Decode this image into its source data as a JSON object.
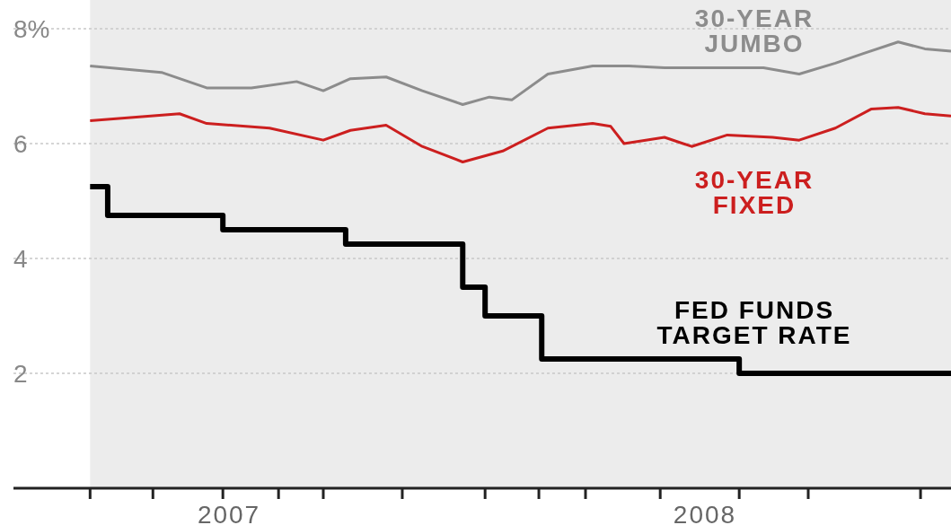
{
  "chart_data": {
    "type": "line",
    "xlim": [
      2006.547,
      2008.517
    ],
    "ylim": [
      0,
      8.5
    ],
    "xticks": [
      {
        "value": 2006.708,
        "label": null
      },
      {
        "value": 2006.84,
        "label": null
      },
      {
        "value": 2006.987,
        "label": null
      },
      {
        "value": 2007,
        "label": "2007"
      },
      {
        "value": 2007.104,
        "label": null
      },
      {
        "value": 2007.198,
        "label": null
      },
      {
        "value": 2007.364,
        "label": null
      },
      {
        "value": 2007.538,
        "label": null
      },
      {
        "value": 2007.651,
        "label": null
      },
      {
        "value": 2007.749,
        "label": null
      },
      {
        "value": 2007.906,
        "label": null
      },
      {
        "value": 2008,
        "label": "2008"
      },
      {
        "value": 2008.072,
        "label": null
      },
      {
        "value": 2008.217,
        "label": null
      },
      {
        "value": 2008.453,
        "label": null
      }
    ],
    "yticks": [
      {
        "value": 2,
        "label": "2"
      },
      {
        "value": 4,
        "label": "4"
      },
      {
        "value": 6,
        "label": "6"
      },
      {
        "value": 8,
        "label": "8%"
      }
    ],
    "grid": "y",
    "series": [
      {
        "name": "30-YEAR JUMBO",
        "color": "#8c8c8c",
        "x": [
          2006.708,
          2006.858,
          2006.953,
          2007.047,
          2007.142,
          2007.198,
          2007.255,
          2007.33,
          2007.406,
          2007.491,
          2007.547,
          2007.594,
          2007.67,
          2007.764,
          2007.84,
          2007.915,
          2008.009,
          2008.123,
          2008.198,
          2008.274,
          2008.33,
          2008.406,
          2008.462,
          2008.517
        ],
        "values": [
          7.35,
          7.24,
          6.97,
          6.97,
          7.08,
          6.92,
          7.13,
          7.16,
          6.92,
          6.68,
          6.81,
          6.76,
          7.21,
          7.35,
          7.35,
          7.32,
          7.32,
          7.32,
          7.21,
          7.4,
          7.56,
          7.77,
          7.65,
          7.61
        ]
      },
      {
        "name": "30-YEAR FIXED",
        "color": "#cc1f1f",
        "x": [
          2006.708,
          2006.896,
          2006.953,
          2007.085,
          2007.198,
          2007.255,
          2007.33,
          2007.406,
          2007.491,
          2007.575,
          2007.67,
          2007.764,
          2007.802,
          2007.83,
          2007.915,
          2007.972,
          2008.047,
          2008.142,
          2008.198,
          2008.274,
          2008.349,
          2008.406,
          2008.462,
          2008.517
        ],
        "values": [
          6.4,
          6.52,
          6.35,
          6.27,
          6.06,
          6.23,
          6.32,
          5.95,
          5.68,
          5.87,
          6.27,
          6.35,
          6.3,
          6.0,
          6.11,
          5.95,
          6.15,
          6.11,
          6.06,
          6.27,
          6.6,
          6.63,
          6.52,
          6.48
        ]
      },
      {
        "name": "FED FUNDS TARGET RATE",
        "type": "step",
        "color": "#000000",
        "x": [
          2006.708,
          2006.745,
          2006.987,
          2007.245,
          2007.491,
          2007.538,
          2007.657,
          2008.072,
          2008.517
        ],
        "values": [
          5.25,
          4.75,
          4.5,
          4.25,
          3.5,
          3.0,
          2.25,
          2.0,
          2.0
        ]
      }
    ]
  }
}
